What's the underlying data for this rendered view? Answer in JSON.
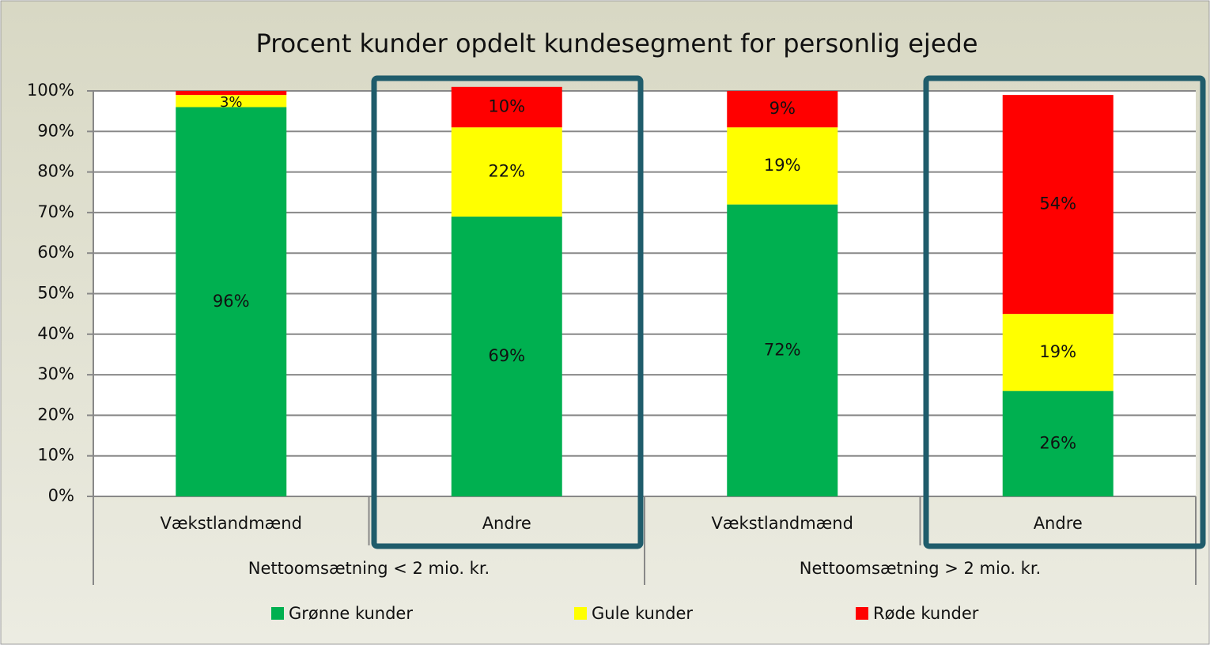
{
  "chart_data": {
    "type": "stacked_bar",
    "title": "Procent kunder opdelt kundesegment for personlig ejede",
    "categories": [
      "Vækstlandmænd",
      "Andre",
      "Vækstlandmænd",
      "Andre"
    ],
    "groups": [
      "Nettoomsætning < 2 mio. kr.",
      "Nettoomsætning > 2 mio. kr."
    ],
    "series": [
      {
        "name": "Grønne kunder",
        "color": "#00b050",
        "values": [
          96,
          69,
          72,
          26
        ],
        "value_labels": [
          "96%",
          "69%",
          "72%",
          "26%"
        ]
      },
      {
        "name": "Gule kunder",
        "color": "#ffff00",
        "values": [
          3,
          22,
          19,
          19
        ],
        "value_labels": [
          "3%",
          "22%",
          "19%",
          "19%"
        ]
      },
      {
        "name": "Røde kunder",
        "color": "#ff0000",
        "values": [
          1,
          10,
          9,
          54
        ],
        "value_labels": [
          null,
          "10%",
          "9%",
          "54%"
        ]
      }
    ],
    "ylim": [
      0,
      100
    ],
    "yticks": [
      {
        "value": 0,
        "label": "0%"
      },
      {
        "value": 10,
        "label": "10%"
      },
      {
        "value": 20,
        "label": "20%"
      },
      {
        "value": 30,
        "label": "30%"
      },
      {
        "value": 40,
        "label": "40%"
      },
      {
        "value": 50,
        "label": "50%"
      },
      {
        "value": 60,
        "label": "60%"
      },
      {
        "value": 70,
        "label": "70%"
      },
      {
        "value": 80,
        "label": "80%"
      },
      {
        "value": 90,
        "label": "90%"
      },
      {
        "value": 100,
        "label": "100%"
      }
    ],
    "grid": true
  }
}
